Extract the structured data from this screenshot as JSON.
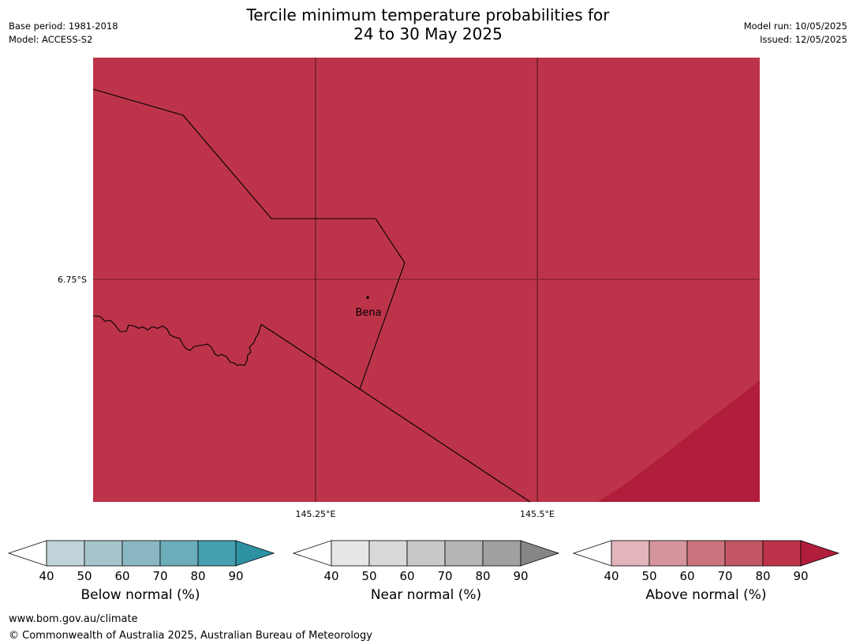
{
  "header": {
    "title_line1": "Tercile minimum temperature probabilities for",
    "title_line2": "24 to 30 May 2025",
    "base_period": "Base period: 1981-2018",
    "model": "Model: ACCESS-S2",
    "model_run": "Model run: 10/05/2025",
    "issued": "Issued: 12/05/2025"
  },
  "map": {
    "lat_label": "6.75°S",
    "lon_labels": [
      "145.25°E",
      "145.5°E"
    ],
    "place": "Bena",
    "colors": {
      "above_80": "#bd344a",
      "above_90": "#b11e3b",
      "lines": "#000000"
    }
  },
  "colorbars": [
    {
      "label": "Below normal (%)",
      "ticks": [
        "40",
        "50",
        "60",
        "70",
        "80",
        "90"
      ],
      "colors": [
        "#ffffff",
        "#c0d3d9",
        "#a6c4ca",
        "#8ab7c3",
        "#6dadba",
        "#45a0b0",
        "#2e92a2"
      ]
    },
    {
      "label": "Near normal (%)",
      "ticks": [
        "40",
        "50",
        "60",
        "70",
        "80",
        "90"
      ],
      "colors": [
        "#ffffff",
        "#e6e6e6",
        "#d9d9d9",
        "#c9c9c9",
        "#b5b5b5",
        "#a0a0a0",
        "#868686"
      ]
    },
    {
      "label": "Above normal (%)",
      "ticks": [
        "40",
        "50",
        "60",
        "70",
        "80",
        "90"
      ],
      "colors": [
        "#ffffff",
        "#e1b5bb",
        "#d6949c",
        "#cb747e",
        "#c35665",
        "#bd344a",
        "#b11e3b"
      ]
    }
  ],
  "footer": {
    "url": "www.bom.gov.au/climate",
    "copyright": "© Commonwealth of Australia 2025, Australian Bureau of Meteorology"
  }
}
